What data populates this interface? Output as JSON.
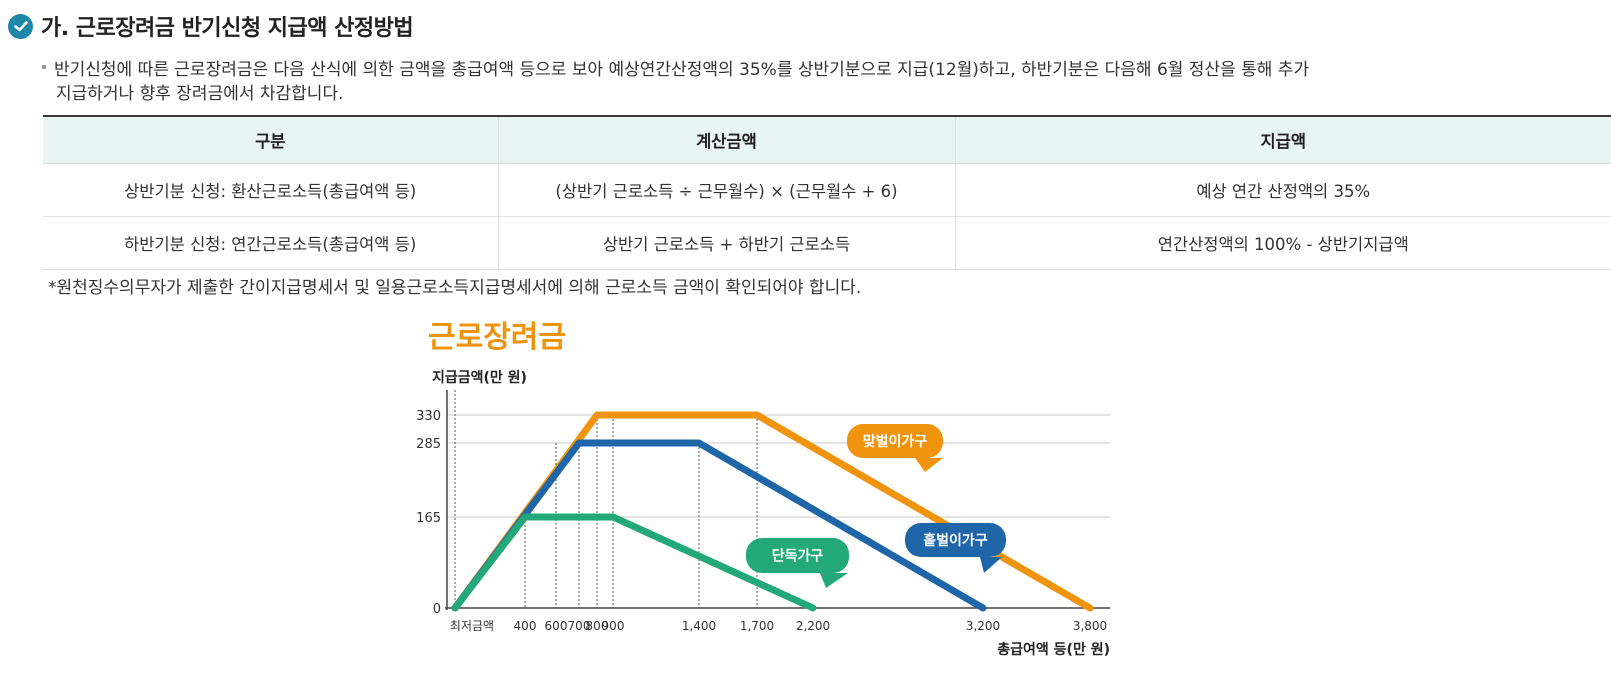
{
  "section": {
    "title": "가. 근로장려금 반기신청 지급액 산정방법",
    "description_line1": "반기신청에 따른 근로장려금은 다음 산식에 의한 금액을 총급여액 등으로 보아 예상연간산정액의 35%를 상반기분으로 지급(12월)하고, 하반기분은 다음해 6월 정산을 통해 추가",
    "description_line2": "지급하거나 향후 장려금에서 차감합니다."
  },
  "table": {
    "headers": [
      "구분",
      "계산금액",
      "지급액"
    ],
    "rows": [
      [
        "상반기분 신청: 환산근로소득(총급여액 등)",
        "(상반기 근로소득 ÷ 근무월수) × (근무월수 + 6)",
        "예상 연간 산정액의 35%"
      ],
      [
        "하반기분 신청: 연간근로소득(총급여액 등)",
        "상반기 근로소득 + 하반기 근로소득",
        "연간산정액의 100% - 상반기지급액"
      ]
    ]
  },
  "note": "*원천징수의무자가 제출한 간이지급명세서 및 일용근로소득지급명세서에 의해 근로소득 금액이 확인되어야 합니다.",
  "chart_data": {
    "type": "line",
    "title": "근로장려금",
    "ylabel": "지급금액(만 원)",
    "xlabel": "총급여액 등(만 원)",
    "x_ticks": [
      "최저금액",
      "400",
      "600",
      "700",
      "800",
      "900",
      "1,400",
      "1,700",
      "2,200",
      "3,200",
      "3,800"
    ],
    "y_ticks": [
      "330",
      "285",
      "165",
      "0"
    ],
    "ylim": [
      0,
      330
    ],
    "series": [
      {
        "name": "맞벌이가구",
        "color": "#f0940e",
        "points": [
          [
            0,
            0
          ],
          [
            800,
            330
          ],
          [
            1700,
            330
          ],
          [
            3800,
            0
          ]
        ]
      },
      {
        "name": "홑벌이가구",
        "color": "#1f66a9",
        "points": [
          [
            0,
            0
          ],
          [
            700,
            285
          ],
          [
            1400,
            285
          ],
          [
            3200,
            0
          ]
        ]
      },
      {
        "name": "단독가구",
        "color": "#23a879",
        "points": [
          [
            0,
            0
          ],
          [
            400,
            165
          ],
          [
            900,
            165
          ],
          [
            2200,
            0
          ]
        ]
      }
    ],
    "colors": {
      "title": "#f0940e",
      "grid": "#c8c8c8"
    }
  }
}
